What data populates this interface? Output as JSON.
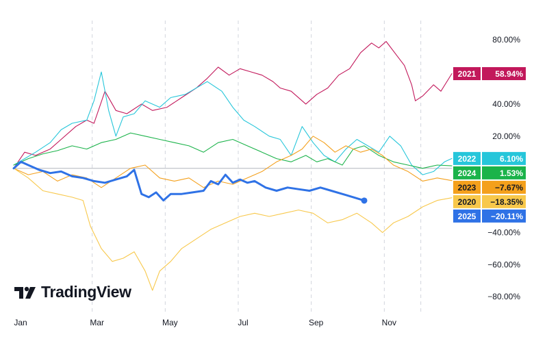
{
  "chart_data": {
    "type": "line",
    "title": "",
    "xlabel": "",
    "ylabel": "",
    "x_tick_labels": [
      "Jan",
      "Mar",
      "May",
      "Jul",
      "Sep",
      "Nov"
    ],
    "y_ticks": [
      80,
      40,
      20,
      -40,
      -60,
      -80
    ],
    "y_tick_labels": [
      "80.00%",
      "40.00%",
      "20.00%",
      "−40.00%",
      "−60.00%",
      "−80.00%"
    ],
    "ylim": [
      -88,
      92
    ],
    "x_range": [
      0,
      12
    ],
    "x_range_unit": "months since Jan 1",
    "series": [
      {
        "name": "2021",
        "label": "58.94%",
        "color": "#c2185b",
        "width": 1.1,
        "points": [
          [
            0,
            0
          ],
          [
            0.3,
            10
          ],
          [
            0.6,
            8
          ],
          [
            1.0,
            12
          ],
          [
            1.3,
            18
          ],
          [
            1.7,
            26
          ],
          [
            2.0,
            30
          ],
          [
            2.2,
            28
          ],
          [
            2.5,
            48
          ],
          [
            2.8,
            36
          ],
          [
            3.1,
            34
          ],
          [
            3.5,
            40
          ],
          [
            3.8,
            36
          ],
          [
            4.2,
            38
          ],
          [
            4.6,
            44
          ],
          [
            5.0,
            50
          ],
          [
            5.3,
            56
          ],
          [
            5.6,
            63
          ],
          [
            5.9,
            58
          ],
          [
            6.2,
            62
          ],
          [
            6.5,
            60
          ],
          [
            6.8,
            58
          ],
          [
            7.1,
            54
          ],
          [
            7.3,
            50
          ],
          [
            7.6,
            48
          ],
          [
            8.0,
            40
          ],
          [
            8.3,
            46
          ],
          [
            8.6,
            50
          ],
          [
            8.9,
            58
          ],
          [
            9.2,
            62
          ],
          [
            9.5,
            72
          ],
          [
            9.8,
            78
          ],
          [
            10.0,
            75
          ],
          [
            10.2,
            79
          ],
          [
            10.5,
            70
          ],
          [
            10.7,
            64
          ],
          [
            10.9,
            52
          ],
          [
            11.0,
            42
          ],
          [
            11.2,
            45
          ],
          [
            11.5,
            52
          ],
          [
            11.7,
            48
          ],
          [
            12.0,
            58.94
          ]
        ]
      },
      {
        "name": "2022",
        "label": "6.10%",
        "color": "#26c6da",
        "width": 1.1,
        "points": [
          [
            0,
            2
          ],
          [
            0.3,
            6
          ],
          [
            0.6,
            10
          ],
          [
            1.0,
            16
          ],
          [
            1.3,
            24
          ],
          [
            1.6,
            28
          ],
          [
            2.0,
            30
          ],
          [
            2.2,
            42
          ],
          [
            2.4,
            60
          ],
          [
            2.6,
            36
          ],
          [
            2.8,
            20
          ],
          [
            3.0,
            32
          ],
          [
            3.3,
            34
          ],
          [
            3.6,
            42
          ],
          [
            4.0,
            38
          ],
          [
            4.3,
            44
          ],
          [
            4.7,
            46
          ],
          [
            5.0,
            50
          ],
          [
            5.3,
            54
          ],
          [
            5.7,
            48
          ],
          [
            6.0,
            38
          ],
          [
            6.3,
            30
          ],
          [
            6.6,
            26
          ],
          [
            7.0,
            20
          ],
          [
            7.3,
            18
          ],
          [
            7.6,
            8
          ],
          [
            7.9,
            26
          ],
          [
            8.2,
            16
          ],
          [
            8.5,
            8
          ],
          [
            8.8,
            4
          ],
          [
            9.1,
            12
          ],
          [
            9.4,
            18
          ],
          [
            9.7,
            14
          ],
          [
            10.0,
            10
          ],
          [
            10.3,
            20
          ],
          [
            10.6,
            14
          ],
          [
            10.9,
            2
          ],
          [
            11.2,
            -4
          ],
          [
            11.5,
            -2
          ],
          [
            11.8,
            4
          ],
          [
            12.0,
            6.1
          ]
        ]
      },
      {
        "name": "2024",
        "label": "1.53%",
        "color": "#1bb34a",
        "width": 1.1,
        "points": [
          [
            0,
            2
          ],
          [
            0.4,
            6
          ],
          [
            0.8,
            9
          ],
          [
            1.2,
            11
          ],
          [
            1.6,
            14
          ],
          [
            2.0,
            12
          ],
          [
            2.4,
            16
          ],
          [
            2.8,
            18
          ],
          [
            3.2,
            22
          ],
          [
            3.6,
            20
          ],
          [
            4.0,
            18
          ],
          [
            4.4,
            16
          ],
          [
            4.8,
            14
          ],
          [
            5.2,
            10
          ],
          [
            5.6,
            16
          ],
          [
            6.0,
            18
          ],
          [
            6.4,
            14
          ],
          [
            6.8,
            10
          ],
          [
            7.2,
            6
          ],
          [
            7.6,
            4
          ],
          [
            8.0,
            8
          ],
          [
            8.3,
            4
          ],
          [
            8.6,
            6
          ],
          [
            9.0,
            2
          ],
          [
            9.3,
            12
          ],
          [
            9.6,
            14
          ],
          [
            10.0,
            8
          ],
          [
            10.4,
            4
          ],
          [
            10.8,
            2
          ],
          [
            11.2,
            0
          ],
          [
            11.6,
            2
          ],
          [
            12.0,
            1.53
          ]
        ]
      },
      {
        "name": "2023",
        "label": "−7.67%",
        "color": "#f4a01c",
        "width": 1.1,
        "points": [
          [
            0,
            0
          ],
          [
            0.4,
            -4
          ],
          [
            0.8,
            -2
          ],
          [
            1.2,
            -8
          ],
          [
            1.6,
            -4
          ],
          [
            2.0,
            -6
          ],
          [
            2.4,
            -12
          ],
          [
            2.8,
            -6
          ],
          [
            3.2,
            0
          ],
          [
            3.6,
            2
          ],
          [
            4.0,
            -6
          ],
          [
            4.4,
            -8
          ],
          [
            4.8,
            -6
          ],
          [
            5.2,
            -12
          ],
          [
            5.6,
            -8
          ],
          [
            6.0,
            -10
          ],
          [
            6.4,
            -6
          ],
          [
            6.8,
            -2
          ],
          [
            7.2,
            4
          ],
          [
            7.6,
            8
          ],
          [
            7.9,
            12
          ],
          [
            8.2,
            20
          ],
          [
            8.5,
            16
          ],
          [
            8.8,
            10
          ],
          [
            9.1,
            14
          ],
          [
            9.5,
            10
          ],
          [
            9.8,
            12
          ],
          [
            10.1,
            8
          ],
          [
            10.4,
            2
          ],
          [
            10.8,
            -2
          ],
          [
            11.2,
            -8
          ],
          [
            11.6,
            -6
          ],
          [
            12.0,
            -7.67
          ]
        ]
      },
      {
        "name": "2020",
        "label": "−18.35%",
        "color": "#f8c84b",
        "width": 1.1,
        "points": [
          [
            0,
            0
          ],
          [
            0.4,
            -6
          ],
          [
            0.8,
            -14
          ],
          [
            1.2,
            -16
          ],
          [
            1.6,
            -18
          ],
          [
            1.9,
            -20
          ],
          [
            2.1,
            -36
          ],
          [
            2.4,
            -50
          ],
          [
            2.7,
            -58
          ],
          [
            3.0,
            -56
          ],
          [
            3.3,
            -52
          ],
          [
            3.6,
            -64
          ],
          [
            3.8,
            -76
          ],
          [
            4.0,
            -64
          ],
          [
            4.3,
            -58
          ],
          [
            4.6,
            -50
          ],
          [
            5.0,
            -44
          ],
          [
            5.4,
            -38
          ],
          [
            5.8,
            -34
          ],
          [
            6.2,
            -30
          ],
          [
            6.6,
            -28
          ],
          [
            7.0,
            -30
          ],
          [
            7.4,
            -28
          ],
          [
            7.8,
            -26
          ],
          [
            8.2,
            -28
          ],
          [
            8.6,
            -34
          ],
          [
            9.0,
            -32
          ],
          [
            9.4,
            -28
          ],
          [
            9.8,
            -34
          ],
          [
            10.1,
            -40
          ],
          [
            10.4,
            -34
          ],
          [
            10.8,
            -30
          ],
          [
            11.2,
            -24
          ],
          [
            11.6,
            -20
          ],
          [
            12.0,
            -18.35
          ]
        ]
      },
      {
        "name": "2025",
        "label": "−20.11%",
        "color": "#2f72e6",
        "width": 3,
        "points": [
          [
            0,
            0
          ],
          [
            0.2,
            4
          ],
          [
            0.4,
            2
          ],
          [
            0.7,
            -1
          ],
          [
            1.0,
            -3
          ],
          [
            1.3,
            -2
          ],
          [
            1.6,
            -5
          ],
          [
            1.9,
            -6
          ],
          [
            2.2,
            -8
          ],
          [
            2.5,
            -9
          ],
          [
            2.8,
            -7
          ],
          [
            3.1,
            -5
          ],
          [
            3.3,
            -1
          ],
          [
            3.5,
            -16
          ],
          [
            3.7,
            -18
          ],
          [
            3.9,
            -15
          ],
          [
            4.1,
            -20
          ],
          [
            4.3,
            -16
          ],
          [
            4.6,
            -16
          ],
          [
            4.9,
            -15
          ],
          [
            5.2,
            -14
          ],
          [
            5.4,
            -8
          ],
          [
            5.6,
            -10
          ],
          [
            5.8,
            -4
          ],
          [
            6.0,
            -9
          ],
          [
            6.2,
            -7
          ],
          [
            6.4,
            -9
          ],
          [
            6.6,
            -8
          ],
          [
            6.9,
            -12
          ],
          [
            7.2,
            -14
          ],
          [
            7.5,
            -12
          ],
          [
            7.8,
            -13
          ],
          [
            8.1,
            -14
          ],
          [
            8.4,
            -12
          ],
          [
            8.7,
            -14
          ],
          [
            9.0,
            -16
          ],
          [
            9.3,
            -18
          ],
          [
            9.6,
            -20.11
          ]
        ]
      }
    ]
  },
  "watermark": {
    "brand": "TradingView"
  }
}
